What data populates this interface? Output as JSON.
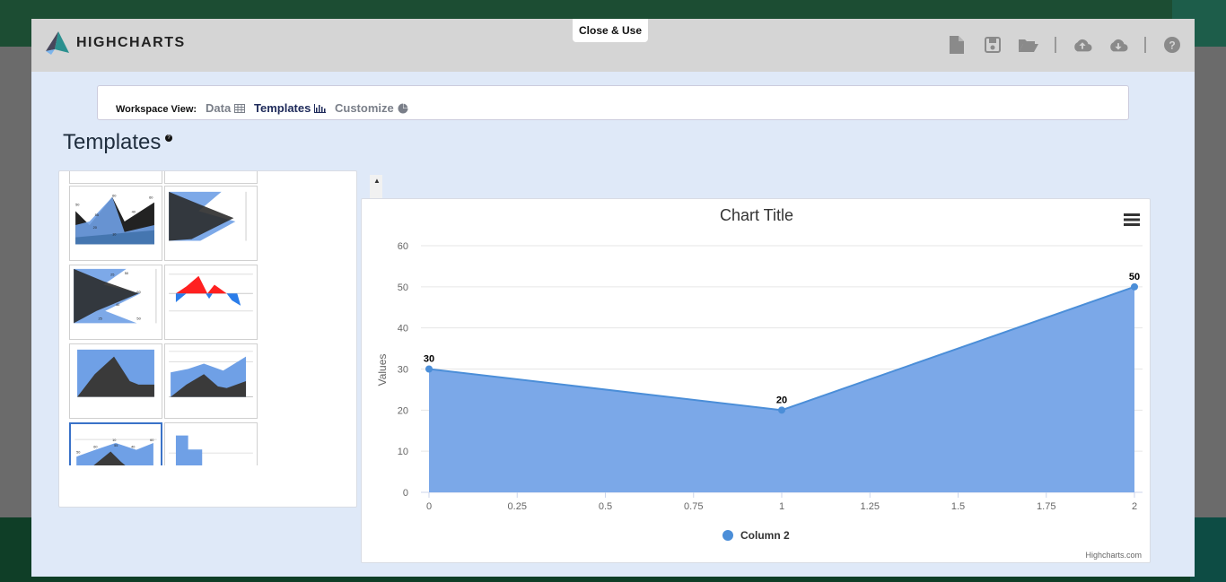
{
  "modal": {
    "close_label": "Close & Use",
    "brand": "HIGHCHARTS"
  },
  "toolbar": {
    "icons": [
      "new-file-icon",
      "save-icon",
      "open-folder-icon",
      "cloud-upload-icon",
      "cloud-download-icon",
      "help-icon"
    ]
  },
  "workspace": {
    "label": "Workspace View:",
    "data_label": "Data",
    "templates_label": "Templates",
    "customize_label": "Customize"
  },
  "templates": {
    "title": "Templates",
    "help": "?"
  },
  "colors": {
    "series": "#4b8ed8",
    "area_fill": "#7ba8e8",
    "dark": "#222222",
    "red": "#ff2020"
  },
  "chart_data": {
    "type": "area",
    "title": "Chart Title",
    "xlabel": "",
    "ylabel": "Values",
    "x": [
      0,
      1,
      2
    ],
    "xlim": [
      0,
      2
    ],
    "xticks": [
      "0",
      "0.25",
      "0.5",
      "0.75",
      "1",
      "1.25",
      "1.5",
      "1.75",
      "2"
    ],
    "ylim": [
      0,
      60
    ],
    "yticks": [
      "0",
      "10",
      "20",
      "30",
      "40",
      "50",
      "60"
    ],
    "series": [
      {
        "name": "Column 2",
        "values": [
          30,
          20,
          50
        ],
        "labels": [
          "30",
          "20",
          "50"
        ]
      }
    ],
    "legend_position": "bottom-center",
    "grid": true,
    "credits": "Highcharts.com"
  }
}
